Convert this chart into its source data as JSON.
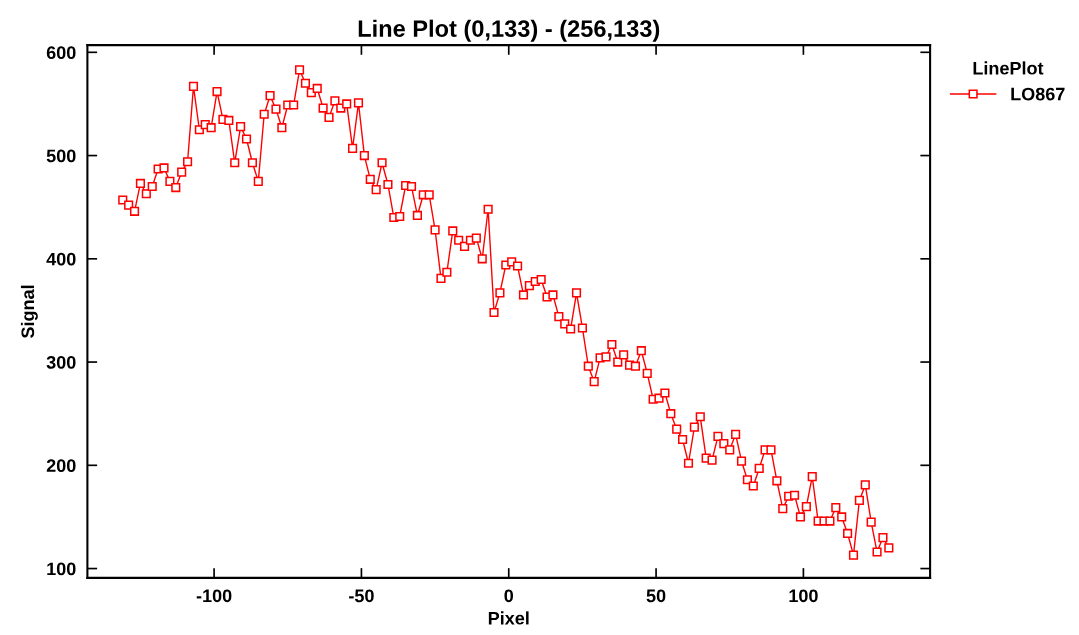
{
  "chart_data": {
    "type": "line",
    "title": "Line Plot (0,133) - (256,133)",
    "xlabel": "Pixel",
    "ylabel": "Signal",
    "legend_title": "LinePlot",
    "legend": "top right",
    "marker": "square",
    "line_style": "solid",
    "grid": false,
    "x": [
      -131,
      -129,
      -127,
      -125,
      -123,
      -121,
      -119,
      -117,
      -115,
      -113,
      -111,
      -109,
      -107,
      -105,
      -103,
      -101,
      -99,
      -97,
      -95,
      -93,
      -91,
      -89,
      -87,
      -85,
      -83,
      -81,
      -79,
      -77,
      -75,
      -73,
      -71,
      -69,
      -67,
      -65,
      -63,
      -61,
      -59,
      -57,
      -55,
      -53,
      -51,
      -49,
      -47,
      -45,
      -43,
      -41,
      -39,
      -37,
      -35,
      -33,
      -31,
      -29,
      -27,
      -25,
      -23,
      -21,
      -19,
      -17,
      -15,
      -13,
      -11,
      -9,
      -7,
      -5,
      -3,
      -1,
      1,
      3,
      5,
      7,
      9,
      11,
      13,
      15,
      17,
      19,
      21,
      23,
      25,
      27,
      29,
      31,
      33,
      35,
      37,
      39,
      41,
      43,
      45,
      47,
      49,
      51,
      53,
      55,
      57,
      59,
      61,
      63,
      65,
      67,
      69,
      71,
      73,
      75,
      77,
      79,
      81,
      83,
      85,
      87,
      89,
      91,
      93,
      95,
      97,
      99,
      101,
      103,
      105,
      107,
      109,
      111,
      113,
      115,
      117,
      119,
      121,
      123,
      125,
      127,
      129
    ],
    "series": [
      {
        "name": "LO867",
        "color": "#ff0000",
        "values": [
          457,
          452,
          446,
          473,
          463,
          470,
          487,
          488,
          475,
          469,
          484,
          494,
          567,
          525,
          530,
          527,
          562,
          535,
          534,
          493,
          528,
          516,
          493,
          475,
          540,
          558,
          545,
          527,
          549,
          549,
          583,
          570,
          561,
          565,
          546,
          537,
          553,
          546,
          550,
          507,
          551,
          500,
          477,
          467,
          493,
          472,
          440,
          441,
          471,
          470,
          442,
          462,
          462,
          428,
          381,
          387,
          427,
          418,
          412,
          418,
          420,
          400,
          448,
          348,
          367,
          394,
          397,
          393,
          365,
          374,
          378,
          380,
          363,
          365,
          344,
          337,
          332,
          367,
          333,
          296,
          281,
          304,
          305,
          317,
          300,
          307,
          297,
          296,
          311,
          289,
          264,
          265,
          270,
          250,
          235,
          225,
          202,
          237,
          247,
          207,
          205,
          228,
          221,
          215,
          230,
          204,
          186,
          180,
          197,
          215,
          215,
          185,
          158,
          170,
          171,
          150,
          160,
          189,
          146,
          146,
          146,
          159,
          150,
          134,
          113,
          166,
          181,
          145,
          116,
          130,
          120
        ]
      }
    ],
    "xlim": [
      -143,
      143
    ],
    "ylim": [
      91,
      607
    ],
    "xticks": [
      -100,
      -50,
      0,
      50,
      100
    ],
    "yticks": [
      100,
      200,
      300,
      400,
      500,
      600
    ]
  }
}
